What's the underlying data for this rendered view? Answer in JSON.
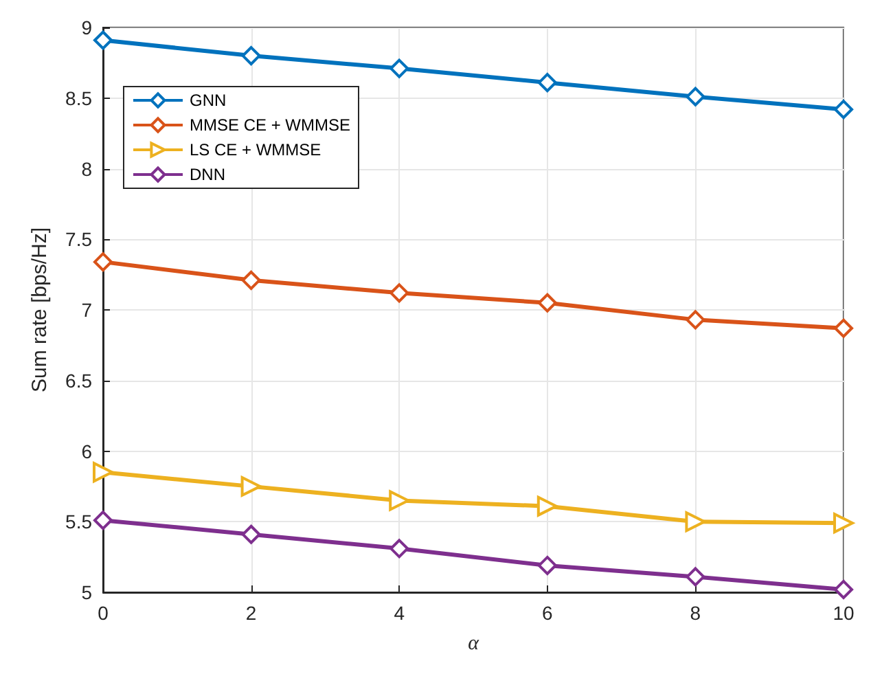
{
  "chart_data": {
    "type": "line",
    "xlabel": "α",
    "ylabel": "Sum rate [bps/Hz]",
    "x": [
      0,
      2,
      4,
      6,
      8,
      10
    ],
    "series": [
      {
        "name": "GNN",
        "color": "#0072bd",
        "marker": "diamond",
        "values": [
          8.91,
          8.8,
          8.71,
          8.61,
          8.51,
          8.42
        ]
      },
      {
        "name": "MMSE CE + WMMSE",
        "color": "#d95319",
        "marker": "diamond",
        "values": [
          7.34,
          7.21,
          7.12,
          7.05,
          6.93,
          6.87
        ]
      },
      {
        "name": "LS CE + WMMSE",
        "color": "#edb120",
        "marker": "triangle",
        "values": [
          5.85,
          5.75,
          5.65,
          5.61,
          5.5,
          5.49
        ]
      },
      {
        "name": "DNN",
        "color": "#7e2f8e",
        "marker": "diamond",
        "values": [
          5.51,
          5.41,
          5.31,
          5.19,
          5.11,
          5.02
        ]
      }
    ],
    "xlim": [
      0,
      10
    ],
    "xticks": [
      0,
      2,
      4,
      6,
      8,
      10
    ],
    "ylim": [
      5,
      9
    ],
    "yticks": [
      5,
      5.5,
      6,
      6.5,
      7,
      7.5,
      8,
      8.5,
      9
    ],
    "grid": true,
    "legend": "top left",
    "line_style": "solid"
  }
}
